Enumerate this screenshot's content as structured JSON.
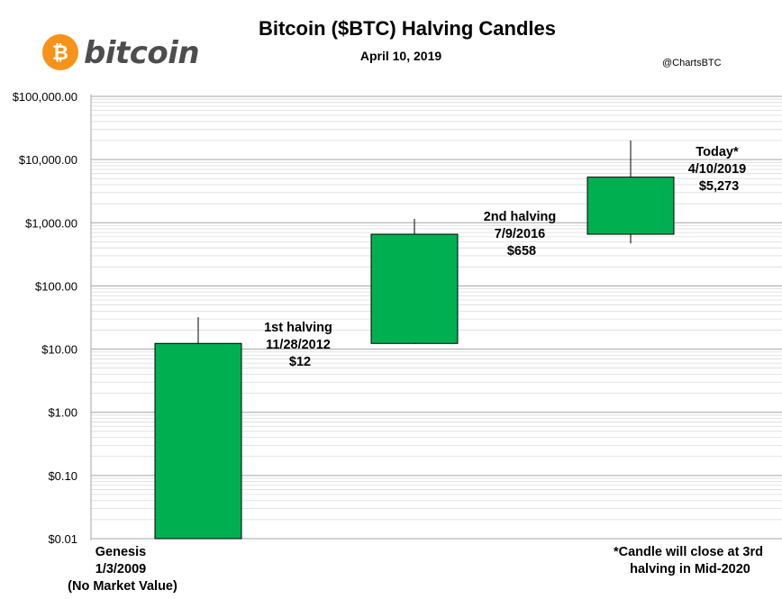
{
  "header": {
    "title": "Bitcoin ($BTC) Halving Candles",
    "subtitle": "April 10, 2019",
    "credit": "@ChartsBTC",
    "logo": {
      "symbol": "₿",
      "word": "bitcoin",
      "icon": "bitcoin-logo-icon",
      "color": "#f7931a"
    }
  },
  "chart_data": {
    "type": "candlestick",
    "title": "Bitcoin ($BTC) Halving Candles",
    "subtitle": "April 10, 2019",
    "y_scale": "log",
    "ylim": [
      0.01,
      100000
    ],
    "y_ticks": [
      0.01,
      0.1,
      1,
      10,
      100,
      1000,
      10000,
      100000
    ],
    "y_tick_labels": [
      "$0.01",
      "$0.10",
      "$1.00",
      "$10.00",
      "$100.00",
      "$1,000.00",
      "$10,000.00",
      "$100,000.00"
    ],
    "grid": true,
    "candle_color": "#00b050",
    "candles": [
      {
        "open": 0.01,
        "high": 32,
        "low": 0.01,
        "close": 12.3
      },
      {
        "open": 12.3,
        "high": 1150,
        "low": 12,
        "close": 658
      },
      {
        "open": 658,
        "high": 20000,
        "low": 470,
        "close": 5273
      }
    ],
    "annotations": [
      {
        "lines": [
          "Genesis",
          "1/3/2009",
          "(No Market Value)"
        ]
      },
      {
        "lines": [
          "1st halving",
          "11/28/2012",
          "$12"
        ]
      },
      {
        "lines": [
          "2nd halving",
          "7/9/2016",
          "$658"
        ]
      },
      {
        "lines": [
          "Today*",
          "4/10/2019",
          "$5,273"
        ]
      },
      {
        "lines": [
          "*Candle will close at 3rd",
          "halving in Mid-2020"
        ]
      }
    ]
  }
}
